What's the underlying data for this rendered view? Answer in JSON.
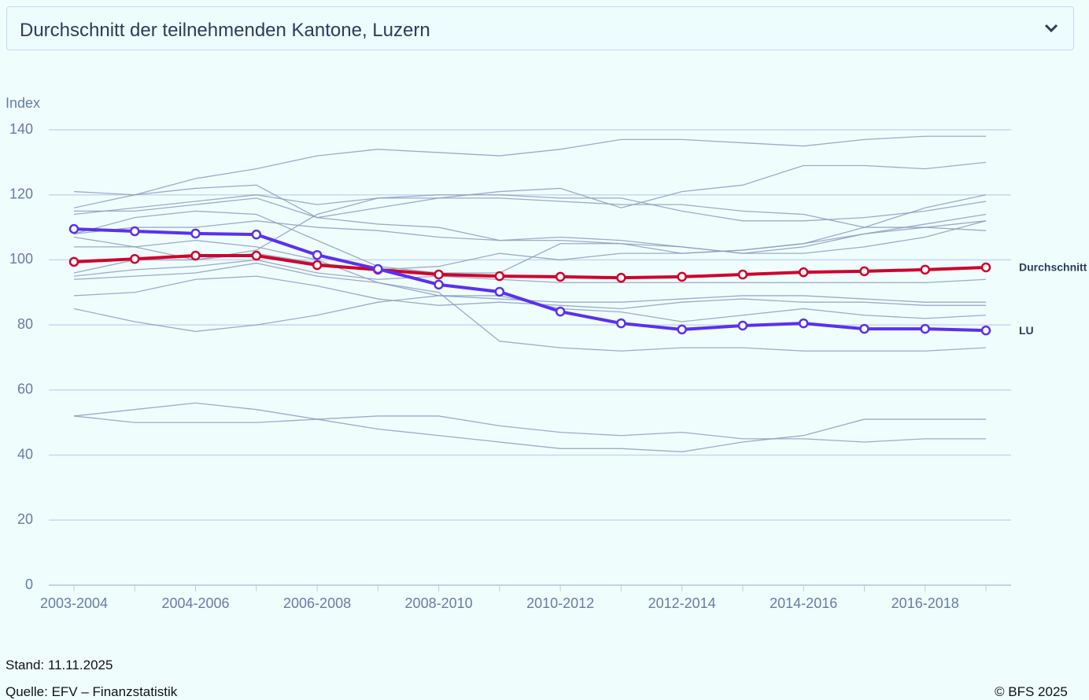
{
  "dropdown": {
    "label": "Durchschnitt der teilnehmenden Kantone, Luzern"
  },
  "footer": {
    "stand": "Stand: 11.11.2025",
    "quelle": "Quelle: EFV – Finanzstatistik",
    "copyright": "© BFS 2025"
  },
  "chart_data": {
    "type": "line",
    "ylabel": "Index",
    "categories": [
      "2003-2004",
      null,
      "2004-2006",
      null,
      "2006-2008",
      null,
      "2008-2010",
      null,
      "2010-2012",
      null,
      "2012-2014",
      null,
      "2014-2016",
      null,
      "2016-2018",
      null
    ],
    "ylim": [
      0,
      140
    ],
    "yticks": [
      0,
      20,
      40,
      60,
      80,
      100,
      120,
      140
    ],
    "grid": true,
    "series": [
      {
        "color": "#8e9bbf",
        "values": [
          116,
          120,
          125,
          128,
          132,
          134,
          133,
          132,
          134,
          137,
          137,
          136,
          135,
          137,
          138,
          138
        ]
      },
      {
        "color": "#8e9bbf",
        "values": [
          121,
          120,
          122,
          123,
          113,
          111,
          110,
          106,
          107,
          106,
          104,
          102,
          102,
          104,
          107,
          112
        ]
      },
      {
        "color": "#8e9bbf",
        "values": [
          115,
          115,
          117,
          119,
          113,
          116,
          119,
          121,
          122,
          116,
          121,
          123,
          129,
          129,
          128,
          130
        ]
      },
      {
        "color": "#8e9bbf",
        "values": [
          114,
          116,
          118,
          120,
          117,
          119,
          119,
          119,
          118,
          117,
          117,
          115,
          114,
          110,
          110,
          109
        ]
      },
      {
        "color": "#8e9bbf",
        "values": [
          108,
          113,
          115,
          114,
          106,
          98,
          96,
          96,
          105,
          105,
          104,
          102,
          104,
          108,
          111,
          114
        ]
      },
      {
        "color": "#8e9bbf",
        "values": [
          108,
          110,
          110,
          112,
          110,
          109,
          107,
          106,
          106,
          105,
          102,
          103,
          105,
          108,
          110,
          112
        ]
      },
      {
        "color": "#8e9bbf",
        "values": [
          104,
          104,
          106,
          104,
          100,
          93,
          90,
          75,
          73,
          72,
          73,
          73,
          72,
          72,
          72,
          73
        ]
      },
      {
        "color": "#8e9bbf",
        "values": [
          96,
          100,
          100,
          102,
          99,
          97,
          98,
          102,
          100,
          102,
          102,
          103,
          105,
          110,
          116,
          120
        ]
      },
      {
        "color": "#8e9bbf",
        "values": [
          95,
          97,
          98,
          100,
          96,
          94,
          95,
          94,
          93,
          93,
          93,
          93,
          93,
          93,
          93,
          94
        ]
      },
      {
        "color": "#8e9bbf",
        "values": [
          94,
          95,
          96,
          99,
          95,
          93,
          89,
          88,
          87,
          87,
          88,
          89,
          89,
          88,
          87,
          87
        ]
      },
      {
        "color": "#8e9bbf",
        "values": [
          89,
          90,
          94,
          95,
          92,
          88,
          86,
          87,
          86,
          85,
          87,
          88,
          87,
          87,
          86,
          86
        ]
      },
      {
        "color": "#8e9bbf",
        "values": [
          85,
          81,
          78,
          80,
          83,
          87,
          89,
          89,
          85,
          84,
          81,
          83,
          85,
          83,
          82,
          83
        ]
      },
      {
        "color": "#8e9bbf",
        "values": [
          52,
          54,
          56,
          54,
          51,
          48,
          46,
          44,
          42,
          42,
          41,
          44,
          46,
          51,
          51,
          51
        ]
      },
      {
        "color": "#8e9bbf",
        "values": [
          52,
          50,
          50,
          50,
          51,
          52,
          52,
          49,
          47,
          46,
          47,
          45,
          45,
          44,
          45,
          45
        ]
      },
      {
        "color": "#8e9bbf",
        "values": [
          107,
          104,
          100,
          103,
          114,
          119,
          120,
          120,
          119,
          119,
          115,
          112,
          112,
          113,
          115,
          118
        ]
      },
      {
        "name": "Durchschnitt",
        "color": "#d0002a",
        "values": [
          99.4,
          100.3,
          101.3,
          101.3,
          98.4,
          97.0,
          95.5,
          95.0,
          94.8,
          94.5,
          94.8,
          95.5,
          96.2,
          96.5,
          97.0,
          97.7
        ]
      },
      {
        "name": "LU",
        "color": "#5a30f0",
        "values": [
          109.5,
          108.8,
          108.1,
          107.8,
          101.5,
          97.2,
          92.4,
          90.2,
          84.1,
          80.5,
          78.6,
          79.8,
          80.5,
          78.8,
          78.8,
          78.3
        ]
      }
    ]
  }
}
